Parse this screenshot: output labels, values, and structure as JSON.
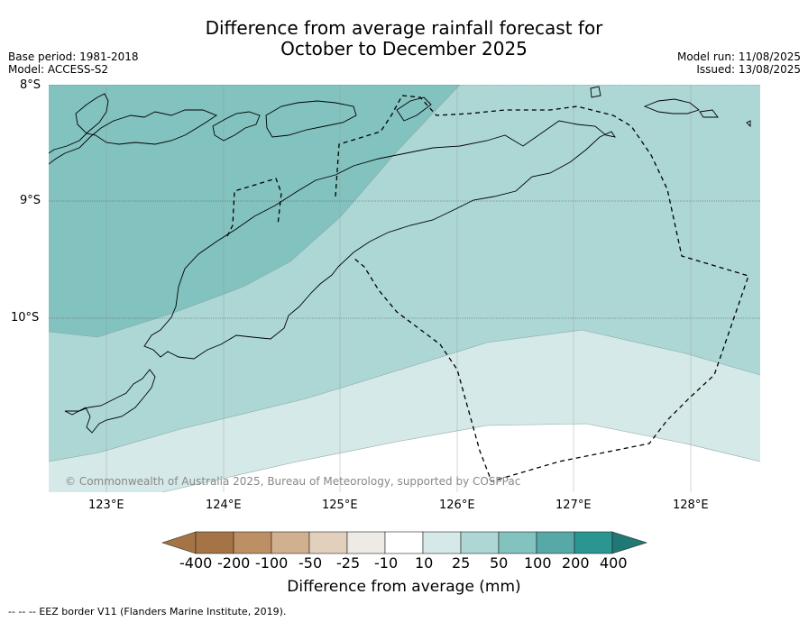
{
  "header": {
    "title_line1": "Difference from average rainfall forecast for",
    "title_line2": "October to December 2025",
    "base_period": "Base period: 1981-2018",
    "model": "Model: ACCESS-S2",
    "model_run": "Model run: 11/08/2025",
    "issued": "Issued: 13/08/2025"
  },
  "axes": {
    "lat_labels": [
      "8°S",
      "9°S",
      "10°S"
    ],
    "lon_labels": [
      "123°E",
      "124°E",
      "125°E",
      "126°E",
      "127°E",
      "128°E"
    ]
  },
  "map": {
    "copyright": "© Commonwealth of Australia 2025, Bureau of Meteorology, supported by COSPPac",
    "zones": [
      {
        "range": "50 to 100",
        "color": "#82c2bf"
      },
      {
        "range": "25 to 50",
        "color": "#acd7d5"
      },
      {
        "range": "10 to 25",
        "color": "#d5e9e8"
      },
      {
        "range": "-10 to 10",
        "color": "#ffffff"
      }
    ]
  },
  "colorbar": {
    "ticks": [
      "-400",
      "-200",
      "-100",
      "-50",
      "-25",
      "-10",
      "10",
      "25",
      "50",
      "100",
      "200",
      "400"
    ],
    "colors": [
      "#a57446",
      "#a57446",
      "#bd8f64",
      "#d1b090",
      "#e2d0bc",
      "#eeebe7",
      "#ffffff",
      "#d5e9e8",
      "#acd7d5",
      "#82c2bf",
      "#57a9a7",
      "#2a9591",
      "#207874"
    ],
    "label": "Difference from average (mm)"
  },
  "footer": {
    "legend_symbol": "-- -- --",
    "legend_text": "EEZ border V11 (Flanders Marine Institute, 2019)."
  }
}
